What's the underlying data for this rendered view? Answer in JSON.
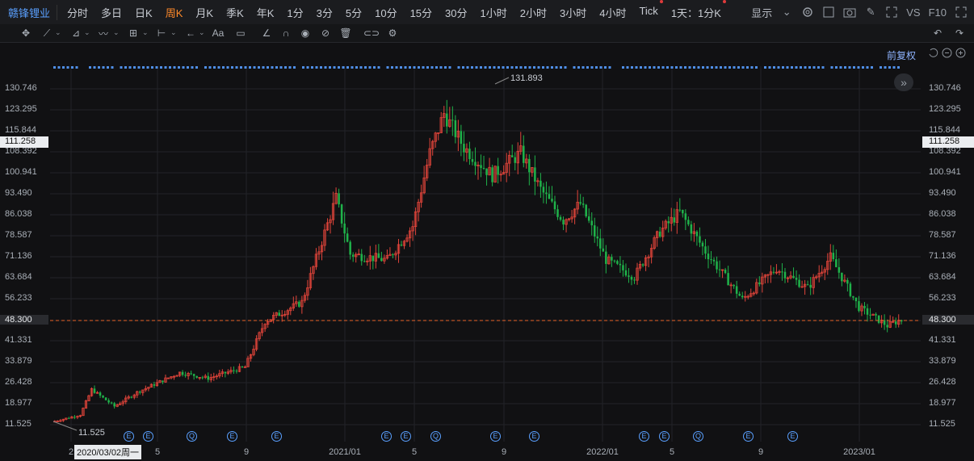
{
  "header": {
    "stock_name": "赣锋锂业",
    "periods": [
      {
        "label": "分时",
        "active": false
      },
      {
        "label": "多日",
        "active": false
      },
      {
        "label": "日K",
        "active": false
      },
      {
        "label": "周K",
        "active": true
      },
      {
        "label": "月K",
        "active": false
      },
      {
        "label": "季K",
        "active": false
      },
      {
        "label": "年K",
        "active": false
      },
      {
        "label": "1分",
        "active": false
      },
      {
        "label": "3分",
        "active": false
      },
      {
        "label": "5分",
        "active": false
      },
      {
        "label": "10分",
        "active": false
      },
      {
        "label": "15分",
        "active": false
      },
      {
        "label": "30分",
        "active": false
      },
      {
        "label": "1小时",
        "active": false
      },
      {
        "label": "2小时",
        "active": false
      },
      {
        "label": "3小时",
        "active": false
      },
      {
        "label": "4小时",
        "active": false
      },
      {
        "label": "Tick",
        "active": false
      },
      {
        "label": "1天：1分K",
        "active": false
      }
    ],
    "display_label": "显示",
    "vs_label": "VS",
    "f10_label": "F10"
  },
  "adjust_label": "前复权",
  "colors": {
    "up": "#e0443a",
    "down": "#1fb24a",
    "accent": "#ff8a2a",
    "link": "#5aa0ff",
    "current_line": "#e8632a"
  },
  "chart_data": {
    "type": "candlestick",
    "title": "",
    "y_ticks": [
      "130.746",
      "123.295",
      "115.844",
      "108.392",
      "100.941",
      "93.490",
      "86.038",
      "78.587",
      "71.136",
      "63.684",
      "56.233",
      "48.300",
      "41.331",
      "33.879",
      "26.428",
      "18.977",
      "11.525"
    ],
    "ylim": [
      7.8,
      138.2
    ],
    "current_price": "48.300",
    "crosshair_price": "111.258",
    "crosshair_date": "2020/03/02周一",
    "max_label": "131.893",
    "min_label": "11.525",
    "x_labels": [
      "2",
      "5",
      "9",
      "2021/01",
      "5",
      "9",
      "2022/01",
      "5",
      "9",
      "2023/01"
    ],
    "event_markers": [
      "E",
      "E",
      "Q",
      "E",
      "E",
      "E",
      "E",
      "Q",
      "E",
      "E",
      "E",
      "E",
      "Q",
      "E",
      "E"
    ],
    "anchor_points": [
      [
        0,
        12.5
      ],
      [
        10,
        15
      ],
      [
        14,
        24
      ],
      [
        22,
        18
      ],
      [
        30,
        23
      ],
      [
        45,
        30
      ],
      [
        55,
        28
      ],
      [
        68,
        32
      ],
      [
        75,
        48
      ],
      [
        88,
        55
      ],
      [
        100,
        92
      ],
      [
        105,
        72
      ],
      [
        118,
        70
      ],
      [
        127,
        82
      ],
      [
        133,
        108
      ],
      [
        138,
        122
      ],
      [
        145,
        110
      ],
      [
        155,
        100
      ],
      [
        165,
        108
      ],
      [
        172,
        95
      ],
      [
        180,
        84
      ],
      [
        186,
        90
      ],
      [
        195,
        70
      ],
      [
        205,
        64
      ],
      [
        214,
        80
      ],
      [
        221,
        87
      ],
      [
        230,
        73
      ],
      [
        243,
        56
      ],
      [
        255,
        67
      ],
      [
        266,
        60
      ],
      [
        274,
        71
      ],
      [
        284,
        53
      ],
      [
        294,
        46.5
      ],
      [
        298,
        48.3
      ]
    ],
    "ohlc_note": "weekly candles, approx 299 bars from 2020/03 to 2023/02"
  }
}
